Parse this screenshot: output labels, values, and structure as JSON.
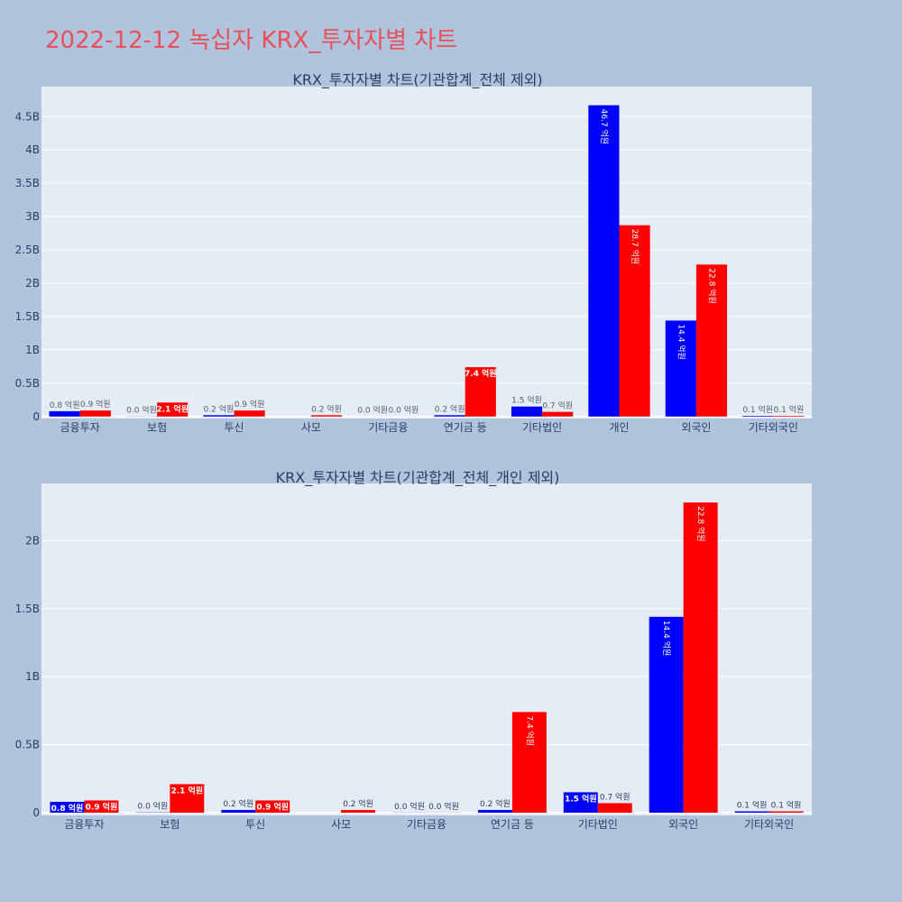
{
  "page": {
    "title": "2022-12-12 녹십자 KRX_투자자별 차트",
    "title_color": "#e8505b",
    "background": "#b0c4de",
    "plot_background": "#e5ecf6"
  },
  "chart_data": [
    {
      "type": "bar",
      "title": "KRX_투자자별 차트(기관합계_전체 제외)",
      "categories": [
        "금융투자",
        "보험",
        "투신",
        "사모",
        "기타금융",
        "연기금 등",
        "기타법인",
        "개인",
        "외국인",
        "기타외국인"
      ],
      "series": [
        {
          "color": "#0000ff",
          "values": [
            80000000,
            2000000,
            20000000,
            0,
            1000000,
            20000000,
            150000000,
            4670000000,
            1440000000,
            10000000
          ],
          "labels": [
            "0.8 억원",
            "0.0 억원",
            "0.2 억원",
            "",
            "0.0 억원",
            "0.2 억원",
            "1.5 억원",
            "46.7 억원",
            "14.4 억원",
            "0.1 억원"
          ]
        },
        {
          "color": "#ff0000",
          "values": [
            90000000,
            210000000,
            90000000,
            20000000,
            1000000,
            740000000,
            70000000,
            2870000000,
            2280000000,
            10000000
          ],
          "labels": [
            "0.9 억원",
            "2.1 억원",
            "0.9 억원",
            "0.2 억원",
            "0.0 억원",
            "7.4 억원",
            "0.7 억원",
            "28.7 억원",
            "22.8 억원",
            "0.1 억원"
          ]
        }
      ],
      "ylim": [
        -30000000,
        4950000000
      ],
      "yticks": [
        0,
        500000000,
        1000000000,
        1500000000,
        2000000000,
        2500000000,
        3000000000,
        3500000000,
        4000000000,
        4500000000
      ],
      "ytick_labels": [
        "0",
        "0.5B",
        "1B",
        "1.5B",
        "2B",
        "2.5B",
        "3B",
        "3.5B",
        "4B",
        "4.5B"
      ],
      "grid": true,
      "legend": "none"
    },
    {
      "type": "bar",
      "title": "KRX_투자자별 차트(기관합계_전체_개인 제외)",
      "categories": [
        "금융투자",
        "보험",
        "투신",
        "사모",
        "기타금융",
        "연기금 등",
        "기타법인",
        "외국인",
        "기타외국인"
      ],
      "series": [
        {
          "color": "#0000ff",
          "values": [
            80000000,
            2000000,
            20000000,
            0,
            1000000,
            20000000,
            150000000,
            1440000000,
            10000000
          ],
          "labels": [
            "0.8 억원",
            "0.0 억원",
            "0.2 억원",
            "",
            "0.0 억원",
            "0.2 억원",
            "1.5 억원",
            "14.4 억원",
            "0.1 억원"
          ]
        },
        {
          "color": "#ff0000",
          "values": [
            90000000,
            210000000,
            90000000,
            20000000,
            1000000,
            740000000,
            70000000,
            2280000000,
            10000000
          ],
          "labels": [
            "0.9 억원",
            "2.1 억원",
            "0.9 억원",
            "0.2 억원",
            "0.0 억원",
            "7.4 억원",
            "0.7 억원",
            "22.8 억원",
            "0.1 억원"
          ]
        }
      ],
      "ylim": [
        -20000000,
        2420000000
      ],
      "yticks": [
        0,
        500000000,
        1000000000,
        1500000000,
        2000000000
      ],
      "ytick_labels": [
        "0",
        "0.5B",
        "1B",
        "1.5B",
        "2B"
      ],
      "grid": true,
      "legend": "none"
    }
  ]
}
